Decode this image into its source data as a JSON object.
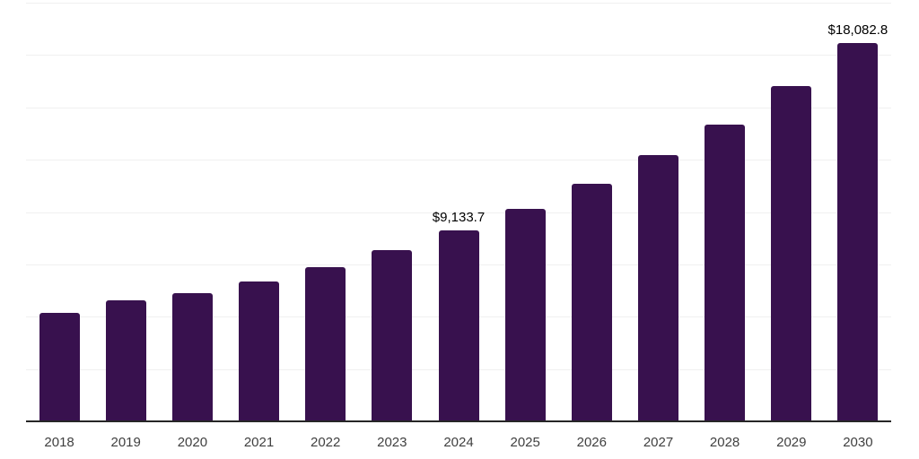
{
  "chart_data": {
    "type": "bar",
    "categories": [
      "2018",
      "2019",
      "2020",
      "2021",
      "2022",
      "2023",
      "2024",
      "2025",
      "2026",
      "2027",
      "2028",
      "2029",
      "2030"
    ],
    "values": [
      5200.0,
      5795.0,
      6140.0,
      6690.0,
      7375.0,
      8185.0,
      9133.7,
      10145.0,
      11340.0,
      12705.0,
      14195.0,
      16025.0,
      18082.8
    ],
    "labeled_points": [
      {
        "category": "2024",
        "label": "$9,133.7"
      },
      {
        "category": "2030",
        "label": "$18,082.8"
      }
    ],
    "title": "",
    "xlabel": "",
    "ylabel": "",
    "ylim": [
      0,
      20000
    ],
    "gridline_interval": 2500,
    "grid": true,
    "legend": false,
    "y_tick_labels_visible": false,
    "colors": {
      "bar": "#38114E",
      "axis": "#262626",
      "gridline": "#F0F0F0",
      "data_label": "#000000",
      "tick_label": "#404040",
      "background": "#FFFFFF"
    }
  }
}
